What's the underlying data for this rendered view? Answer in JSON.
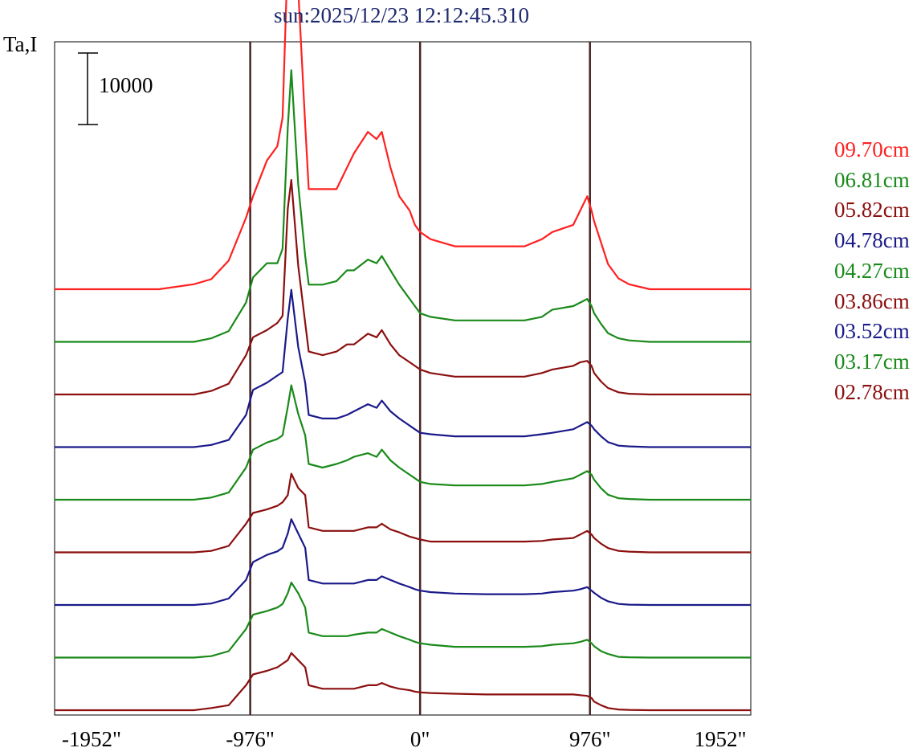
{
  "title": "sun:2025/12/23 12:12:45.310",
  "ylabel": "Ta,I",
  "scale_label": "10000",
  "chart_data": {
    "type": "line",
    "title": "sun:2025/12/23 12:12:45.310",
    "ylabel": "Ta,I",
    "xlabel": "",
    "xlim": [
      -2100,
      1900
    ],
    "x_ticks": [
      "-1952\"",
      "-976\"",
      "0\"",
      "976\"",
      "1952\""
    ],
    "x_tick_values": [
      -1952,
      -976,
      0,
      976,
      1952
    ],
    "reference_lines_x": [
      -976,
      0,
      976
    ],
    "scale_bar": 10000,
    "grid": false,
    "legend_placement": "right",
    "x": [
      -2100,
      -1500,
      -1300,
      -1200,
      -1100,
      -1000,
      -960,
      -880,
      -820,
      -790,
      -760,
      -740,
      -700,
      -660,
      -640,
      -560,
      -480,
      -420,
      -380,
      -300,
      -250,
      -220,
      -170,
      -120,
      -60,
      -30,
      0,
      60,
      200,
      380,
      500,
      600,
      700,
      760,
      880,
      920,
      960,
      985,
      1000,
      1040,
      1080,
      1140,
      1200,
      1320,
      1400,
      1500,
      1700,
      1900
    ],
    "series": [
      {
        "name": "09.70cm",
        "color": "#ff2020",
        "values": [
          0,
          0,
          700,
          1400,
          4000,
          10000,
          13000,
          18000,
          20000,
          24000,
          47000,
          59000,
          42000,
          23000,
          14000,
          14000,
          14000,
          17000,
          19000,
          22000,
          21000,
          22000,
          17000,
          13000,
          11000,
          9000,
          8000,
          7000,
          6000,
          6000,
          6000,
          6000,
          7000,
          8000,
          9000,
          11000,
          13000,
          11000,
          9500,
          6500,
          3500,
          1500,
          700,
          0,
          0,
          0,
          0,
          0
        ]
      },
      {
        "name": "06.81cm",
        "color": "#1a8a1a",
        "values": [
          0,
          0,
          0,
          500,
          1500,
          5500,
          9000,
          11000,
          11000,
          13000,
          30000,
          38000,
          22000,
          12000,
          8000,
          8000,
          8500,
          10000,
          10000,
          11500,
          11000,
          12000,
          10000,
          8000,
          6000,
          5000,
          4000,
          3500,
          3000,
          3000,
          3000,
          3000,
          3500,
          4500,
          5000,
          5500,
          6000,
          5000,
          4000,
          2500,
          1200,
          500,
          200,
          0,
          0,
          0,
          0,
          0
        ]
      },
      {
        "name": "05.82cm",
        "color": "#8b0f0f",
        "values": [
          0,
          0,
          0,
          500,
          1500,
          5500,
          8000,
          9000,
          10000,
          11000,
          26000,
          30000,
          18000,
          10000,
          6000,
          5500,
          6000,
          7000,
          7000,
          8500,
          8000,
          9000,
          7000,
          5500,
          4500,
          4000,
          3500,
          3000,
          2500,
          2500,
          2500,
          2500,
          3000,
          3500,
          4000,
          4500,
          4700,
          4000,
          3000,
          1800,
          900,
          300,
          100,
          0,
          0,
          0,
          0,
          0
        ]
      },
      {
        "name": "04.78cm",
        "color": "#1a1a8a",
        "values": [
          0,
          0,
          0,
          300,
          1000,
          4500,
          8000,
          9000,
          10000,
          10500,
          18000,
          22000,
          14000,
          9000,
          4500,
          4000,
          4000,
          4500,
          5000,
          6000,
          5500,
          6500,
          5000,
          4000,
          3000,
          2500,
          2000,
          1800,
          1500,
          1500,
          1500,
          1500,
          1800,
          2000,
          2500,
          3000,
          3500,
          3000,
          2500,
          1500,
          700,
          200,
          100,
          0,
          0,
          0,
          0,
          0
        ]
      },
      {
        "name": "04.27cm",
        "color": "#1a8a1a",
        "values": [
          0,
          0,
          0,
          300,
          1000,
          4500,
          7000,
          8000,
          8500,
          9000,
          13000,
          16000,
          12000,
          9000,
          5000,
          4500,
          5000,
          5500,
          6000,
          6500,
          6000,
          7000,
          5500,
          4500,
          3500,
          3000,
          2500,
          2200,
          2000,
          2000,
          2000,
          2000,
          2200,
          2500,
          3000,
          3500,
          4000,
          3500,
          2800,
          1600,
          700,
          200,
          100,
          0,
          0,
          0,
          0,
          0
        ]
      },
      {
        "name": "03.86cm",
        "color": "#8b0f0f",
        "values": [
          0,
          0,
          0,
          200,
          900,
          4000,
          5500,
          6000,
          6500,
          7000,
          8000,
          11000,
          9000,
          8000,
          3500,
          3000,
          3000,
          3000,
          3000,
          3500,
          3500,
          4000,
          3200,
          2800,
          2200,
          2000,
          1800,
          1500,
          1500,
          1500,
          1500,
          1500,
          1600,
          1800,
          2000,
          2500,
          3000,
          2500,
          2000,
          1200,
          600,
          200,
          100,
          0,
          0,
          0,
          0,
          0
        ]
      },
      {
        "name": "03.52cm",
        "color": "#1a1a8a",
        "values": [
          0,
          0,
          0,
          200,
          900,
          3500,
          6000,
          7000,
          7500,
          8000,
          10000,
          12000,
          10000,
          8000,
          3500,
          3000,
          3000,
          3000,
          3000,
          3500,
          3500,
          4000,
          3500,
          3000,
          2500,
          2200,
          2000,
          1800,
          1600,
          1500,
          1500,
          1500,
          1600,
          1800,
          2000,
          2200,
          2500,
          2000,
          1700,
          1000,
          500,
          150,
          50,
          0,
          0,
          0,
          0,
          0
        ]
      },
      {
        "name": "03.17cm",
        "color": "#1a8a1a",
        "values": [
          0,
          0,
          0,
          200,
          900,
          4000,
          6000,
          6500,
          7000,
          7500,
          9000,
          10500,
          9000,
          7000,
          3500,
          3000,
          3000,
          3000,
          3200,
          3500,
          3500,
          4000,
          3500,
          3000,
          2500,
          2200,
          2000,
          1800,
          1500,
          1500,
          1500,
          1500,
          1600,
          1800,
          2000,
          2200,
          2500,
          2000,
          1600,
          900,
          500,
          100,
          50,
          0,
          0,
          0,
          0,
          0
        ]
      },
      {
        "name": "02.78cm",
        "color": "#8b0f0f",
        "values": [
          0,
          0,
          0,
          300,
          700,
          3500,
          5000,
          5500,
          6000,
          6500,
          7000,
          8000,
          7000,
          6000,
          3500,
          3000,
          3000,
          3000,
          3000,
          3500,
          3500,
          3800,
          3300,
          3000,
          2800,
          2600,
          2500,
          2400,
          2300,
          2200,
          2200,
          2200,
          2200,
          2200,
          2200,
          2100,
          2000,
          1700,
          1200,
          700,
          300,
          100,
          50,
          0,
          0,
          0,
          0,
          0
        ]
      }
    ]
  }
}
